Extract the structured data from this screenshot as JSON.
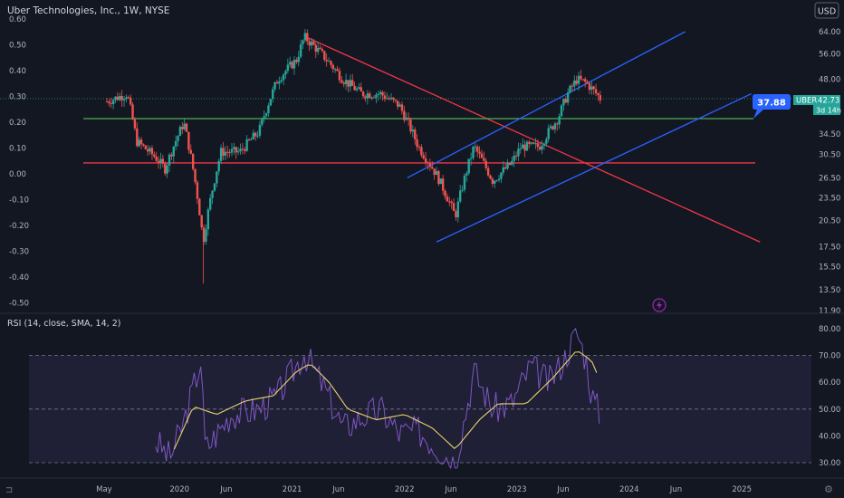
{
  "header": {
    "title": "Uber Technologies, Inc., 1W, NYSE",
    "currency": "USD"
  },
  "price_panel": {
    "left_ticks": [
      "0.60",
      "0.50",
      "0.40",
      "0.30",
      "0.20",
      "0.10",
      "0.00",
      "-0.10",
      "-0.20",
      "-0.30",
      "-0.40",
      "-0.50"
    ],
    "right_ticks": [
      "64.00",
      "56.00",
      "48.00",
      "40.00",
      "34.50",
      "30.50",
      "26.50",
      "23.50",
      "20.50",
      "17.50",
      "15.50",
      "13.50",
      "11.90"
    ],
    "callout_label": "37.88",
    "ticker_label": "UBER",
    "last_price_label": "42.73",
    "countdown_label": "3d 14h"
  },
  "rsi_panel": {
    "title": "RSI (14, close, SMA, 14, 2)",
    "ticks": [
      "80.00",
      "70.00",
      "60.00",
      "50.00",
      "40.00",
      "30.00"
    ]
  },
  "time_axis": {
    "labels": [
      "May",
      "2020",
      "Jun",
      "2021",
      "Jun",
      "2022",
      "Jun",
      "2023",
      "Jun",
      "2024",
      "Jun",
      "2025"
    ]
  },
  "colors": {
    "background": "#131722",
    "up_candle": "#26a69a",
    "down_candle": "#ef5350",
    "trend_red": "#f23645",
    "trend_blue": "#2962ff",
    "support_green": "#4caf50",
    "rsi_line": "#7e57c2",
    "rsi_ma": "#e6d36b",
    "callout": "#2962ff"
  },
  "icons": {
    "bottom_left": "tradingview-logo-icon",
    "bottom_right": "gear-icon",
    "chart_marker": "lightning-icon"
  },
  "chart_data": [
    {
      "type": "candlestick",
      "title": "Uber Technologies, Inc., 1W, NYSE",
      "ylabel": "USD",
      "yscale": "log",
      "ylim": [
        11.9,
        72
      ],
      "x_start": "2019-05-10",
      "x_end": "2025-08-15",
      "grid": false,
      "series": [
        {
          "name": "UBER",
          "x": [
            "2019-05-10",
            "2019-07-15",
            "2019-08-15",
            "2019-10-15",
            "2019-11-15",
            "2020-01-15",
            "2020-03-18",
            "2020-05-15",
            "2020-07-15",
            "2020-09-15",
            "2020-11-15",
            "2021-01-15",
            "2021-02-10",
            "2021-04-15",
            "2021-06-15",
            "2021-08-15",
            "2021-10-15",
            "2021-12-15",
            "2022-02-15",
            "2022-04-15",
            "2022-06-15",
            "2022-08-15",
            "2022-10-15",
            "2022-12-15",
            "2023-01-15",
            "2023-03-15",
            "2023-05-15",
            "2023-06-15",
            "2023-07-15",
            "2023-08-15",
            "2023-09-30"
          ],
          "values": [
            42,
            44,
            33,
            30,
            28,
            37,
            18,
            31,
            31,
            35,
            48,
            54,
            62,
            55,
            48,
            44,
            44,
            41,
            32,
            27,
            21,
            32,
            26,
            29,
            32,
            32,
            38,
            44,
            48,
            47,
            42.73
          ]
        }
      ],
      "annotations": [
        {
          "type": "trendline",
          "color": "red",
          "from": [
            "2021-02-15",
            62
          ],
          "to": [
            "2025-03-01",
            18
          ]
        },
        {
          "type": "horizontal",
          "color": "green",
          "value": 37.88
        },
        {
          "type": "horizontal",
          "color": "red",
          "value": 29
        },
        {
          "type": "channel-upper",
          "color": "blue",
          "from": [
            "2022-01-10",
            26.5
          ],
          "to": [
            "2024-07-01",
            64
          ]
        },
        {
          "type": "channel-lower",
          "color": "blue",
          "from": [
            "2022-04-15",
            18
          ],
          "to": [
            "2025-02-01",
            44
          ]
        }
      ],
      "last_price": 42.73,
      "callout_value": 37.88
    },
    {
      "type": "line",
      "title": "RSI (14, close, SMA, 14, 2)",
      "ylim": [
        30,
        80
      ],
      "bands": [
        30,
        50,
        70
      ],
      "series": [
        {
          "name": "RSI",
          "x": [
            "2019-10-15",
            "2019-12-01",
            "2020-01-15",
            "2020-03-10",
            "2020-03-25",
            "2020-06-15",
            "2020-09-15",
            "2020-11-15",
            "2021-02-10",
            "2021-04-15",
            "2021-06-15",
            "2021-08-15",
            "2021-10-15",
            "2021-12-15",
            "2022-02-15",
            "2022-04-15",
            "2022-06-15",
            "2022-08-15",
            "2022-10-15",
            "2022-12-15",
            "2023-02-15",
            "2023-04-15",
            "2023-06-01",
            "2023-07-15",
            "2023-08-15",
            "2023-09-01",
            "2023-09-30"
          ],
          "values": [
            38,
            32,
            45,
            68,
            35,
            48,
            50,
            55,
            71,
            58,
            43,
            47,
            50,
            41,
            42,
            36,
            30,
            64,
            50,
            52,
            66,
            60,
            68,
            79,
            68,
            55,
            48
          ]
        },
        {
          "name": "RSI-based MA",
          "x": [
            "2019-12-15",
            "2020-02-15",
            "2020-05-01",
            "2020-08-01",
            "2020-11-01",
            "2021-01-15",
            "2021-03-01",
            "2021-05-01",
            "2021-07-01",
            "2021-10-01",
            "2022-01-01",
            "2022-04-01",
            "2022-06-15",
            "2022-09-01",
            "2022-11-01",
            "2023-02-01",
            "2023-05-01",
            "2023-07-15",
            "2023-09-01",
            "2023-09-30"
          ],
          "values": [
            35,
            51,
            48,
            53,
            55,
            64,
            67,
            60,
            50,
            46,
            48,
            43,
            35,
            46,
            52,
            52,
            62,
            72,
            68,
            60
          ]
        }
      ]
    }
  ]
}
